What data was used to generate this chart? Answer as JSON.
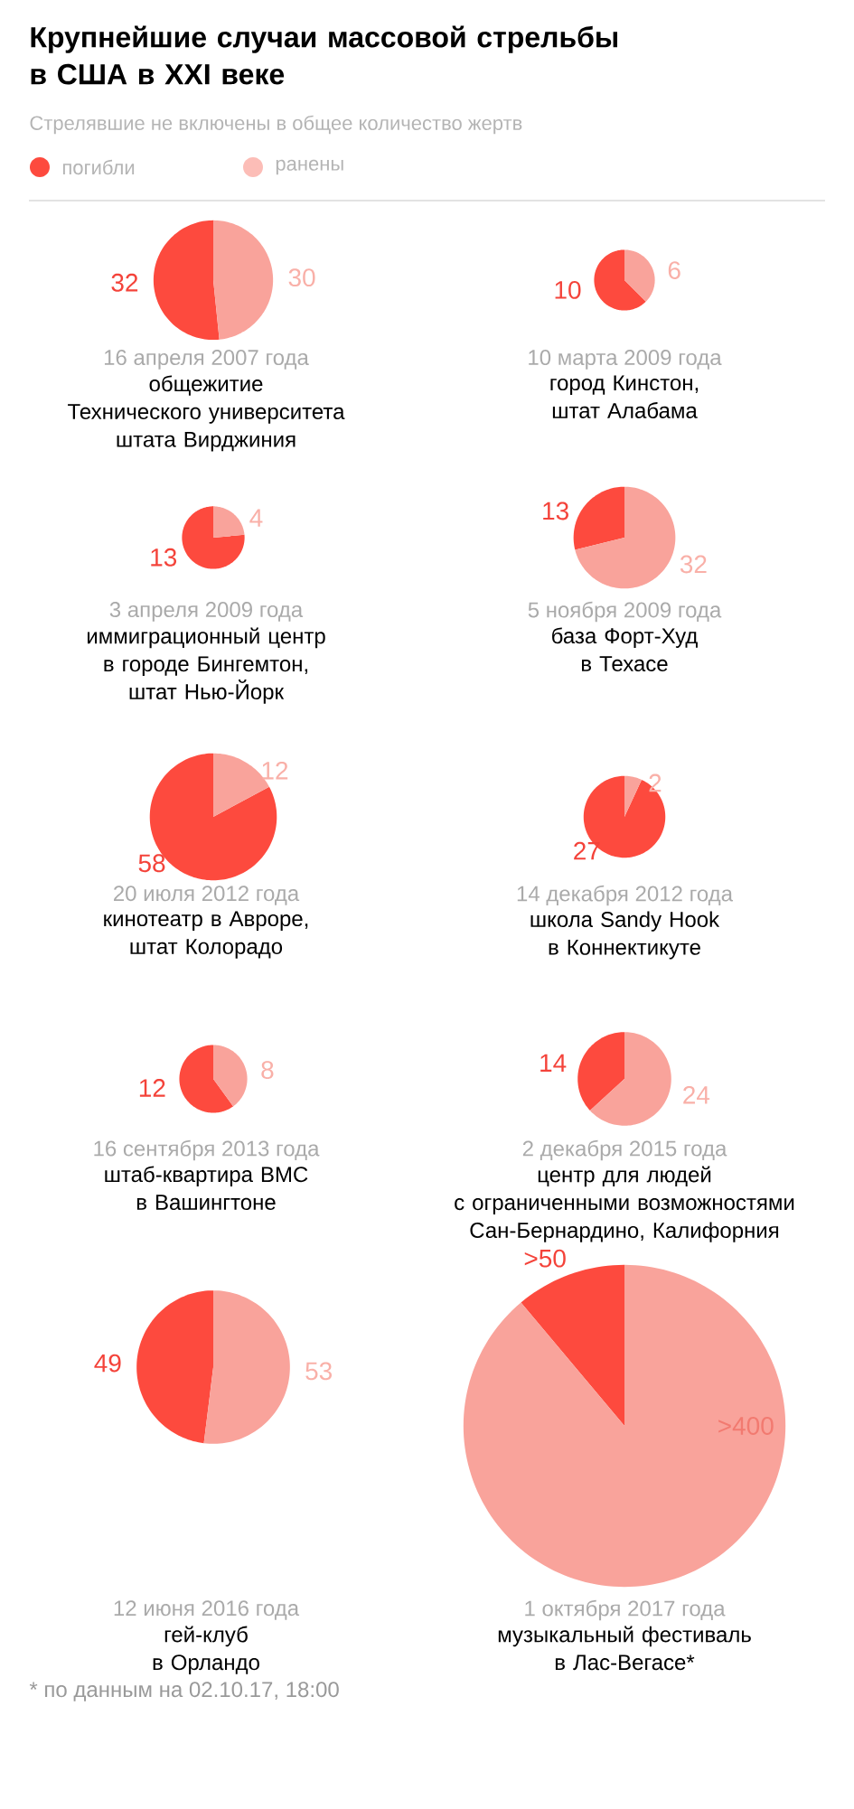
{
  "chart_data": [
    {
      "type": "other",
      "title": "Крупнейшие случаи массовой стрельбы в США в XXI веке",
      "subtitle": "Стрелявшие не включены в общее количество жертв",
      "categories": [
        "погибли",
        "ранены"
      ],
      "colors": [
        "#fd4a3e",
        "#fcbdb7"
      ]
    },
    {
      "type": "pie",
      "title": "16 апреля 2007 года",
      "subtitle": "общежитие\nТехнического университета\nштата Вирджиния",
      "categories": [
        null,
        null
      ],
      "values": [
        32,
        30
      ],
      "colors": [
        "#fd4a3e",
        "#f9a39b"
      ],
      "data_labels": true
    },
    {
      "type": "pie",
      "title": "10 марта 2009 года",
      "subtitle": "город Кинстон,\nштат Алабама",
      "categories": [
        null,
        null
      ],
      "values": [
        10,
        6
      ],
      "colors": [
        "#fd4a3e",
        "#f9a39b"
      ],
      "data_labels": true
    },
    {
      "type": "pie",
      "title": "3 апреля 2009 года",
      "subtitle": "иммиграционный центр\nв городе Бингемтон,\nштат Нью-Йорк",
      "categories": [
        null,
        null
      ],
      "values": [
        13,
        4
      ],
      "colors": [
        "#fd4a3e",
        "#f9a39b"
      ],
      "data_labels": true
    },
    {
      "type": "pie",
      "title": "5 ноября 2009 года",
      "subtitle": "база Форт-Худ\nв Техасе",
      "categories": [
        null,
        null
      ],
      "values": [
        13,
        32
      ],
      "colors": [
        "#fd4a3e",
        "#f9a39b"
      ],
      "data_labels": true
    },
    {
      "type": "pie",
      "title": "20 июля 2012 года",
      "subtitle": "кинотеатр в Авроре,\nштат Колорадо",
      "categories": [
        null,
        null
      ],
      "values": [
        58,
        12
      ],
      "colors": [
        "#fd4a3e",
        "#f9a39b"
      ],
      "data_labels": true
    },
    {
      "type": "pie",
      "title": "14 декабря 2012 года",
      "subtitle": "школа Sandy Hook\nв Коннектикуте",
      "categories": [
        null,
        null
      ],
      "values": [
        27,
        2
      ],
      "colors": [
        "#fd4a3e",
        "#f9a39b"
      ],
      "data_labels": true
    },
    {
      "type": "pie",
      "title": "16 сентября 2013 года",
      "subtitle": "штаб-квартира ВМС\nв Вашингтоне",
      "categories": [
        null,
        null
      ],
      "values": [
        12,
        8
      ],
      "colors": [
        "#fd4a3e",
        "#f9a39b"
      ],
      "data_labels": true
    },
    {
      "type": "pie",
      "title": "2 декабря 2015 года",
      "subtitle": "центр для людей\nс ограниченными возможностями\nСан-Бернардино, Калифорния",
      "categories": [
        null,
        null
      ],
      "values": [
        14,
        24
      ],
      "colors": [
        "#fd4a3e",
        "#f9a39b"
      ],
      "data_labels": true
    },
    {
      "type": "pie",
      "title": "12 июня 2016 года",
      "subtitle": "гей-клуб\nв Орландо",
      "categories": [
        null,
        null
      ],
      "values": [
        49,
        53
      ],
      "colors": [
        "#fd4a3e",
        "#f9a39b"
      ],
      "data_labels": true
    },
    {
      "type": "pie",
      "title": "1 октября 2017 года",
      "subtitle": "музыкальный фестиваль\nв Лас-Вегасе*",
      "categories": [
        null,
        null
      ],
      "values": [
        50,
        400
      ],
      "value_labels": [
        ">50",
        ">400"
      ],
      "colors": [
        "#fd4a3e",
        "#f9a39b"
      ],
      "annotations": [
        "* по данным на 02.10.17, 18:00"
      ]
    }
  ]
}
